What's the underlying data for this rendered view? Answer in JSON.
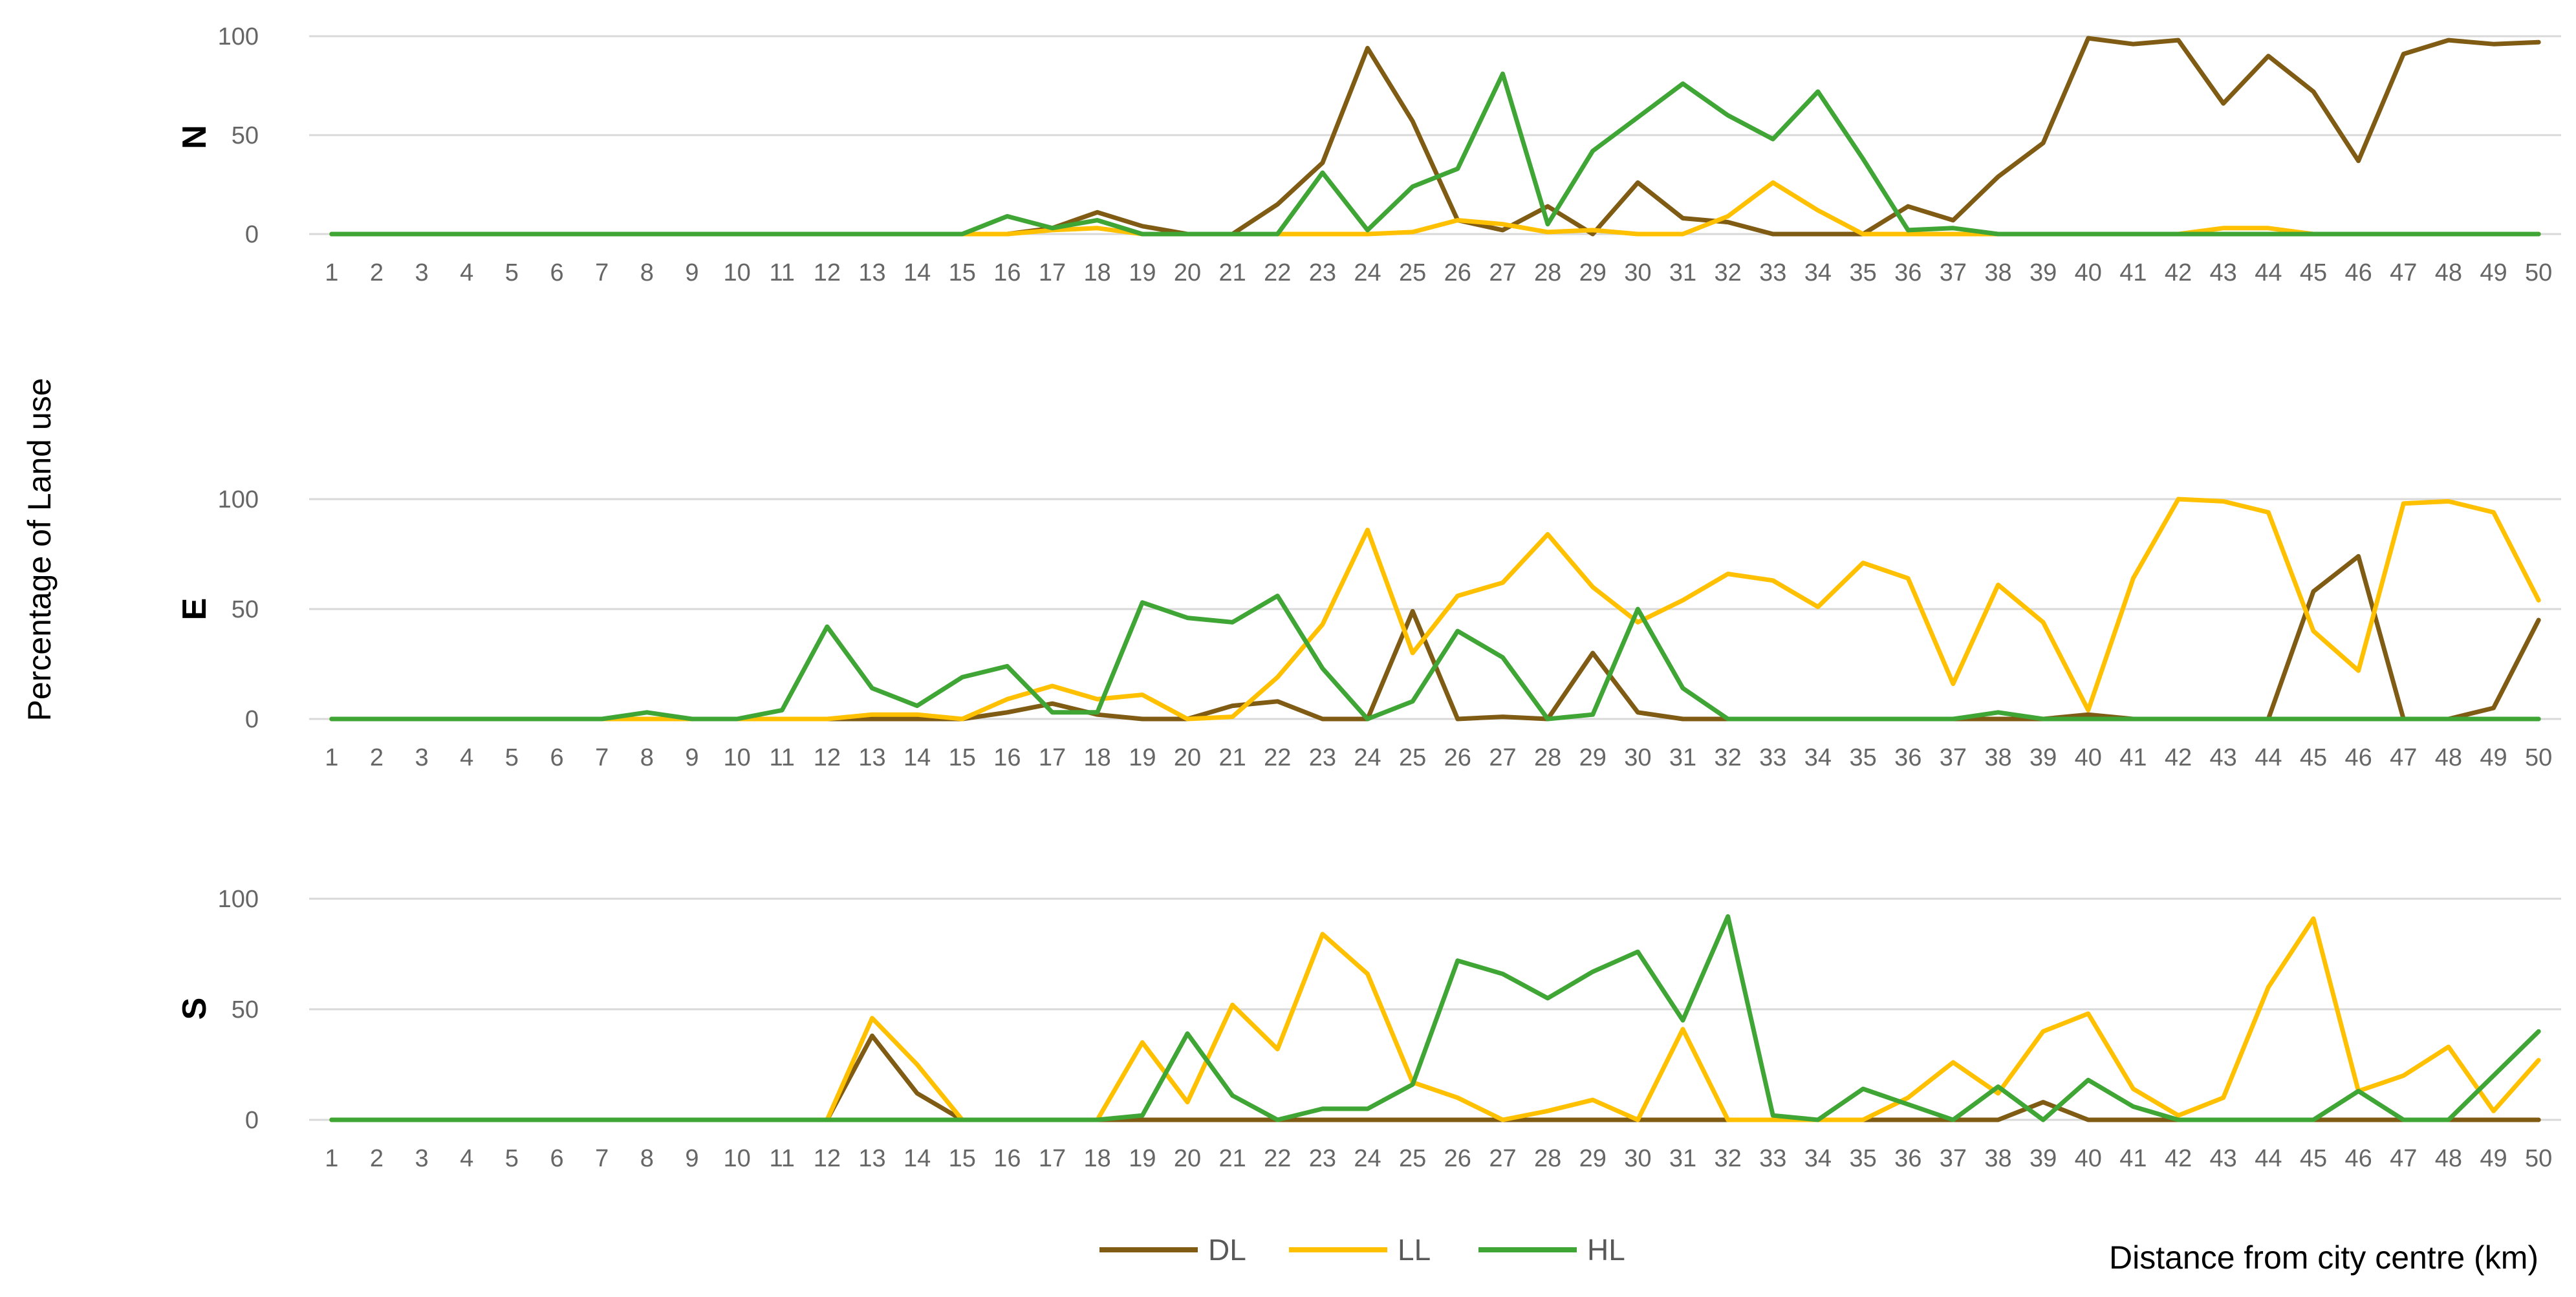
{
  "chart_data": {
    "type": "line",
    "ylabel": "Percentage of Land use",
    "xlabel": "Distance from city centre (km)",
    "x": [
      1,
      2,
      3,
      4,
      5,
      6,
      7,
      8,
      9,
      10,
      11,
      12,
      13,
      14,
      15,
      16,
      17,
      18,
      19,
      20,
      21,
      22,
      23,
      24,
      25,
      26,
      27,
      28,
      29,
      30,
      31,
      32,
      33,
      34,
      35,
      36,
      37,
      38,
      39,
      40,
      41,
      42,
      43,
      44,
      45,
      46,
      47,
      48,
      49,
      50
    ],
    "y_ticks": [
      0,
      50,
      100
    ],
    "ylim": [
      0,
      100
    ],
    "grid": true,
    "legend_position": "bottom",
    "legend": [
      {
        "name": "DL",
        "color": "#7f5b13"
      },
      {
        "name": "LL",
        "color": "#ffc000"
      },
      {
        "name": "HL",
        "color": "#3fa535"
      }
    ],
    "panels": [
      {
        "label": "N",
        "series": [
          {
            "name": "DL",
            "color": "#7f5b13",
            "values": [
              0,
              0,
              0,
              0,
              0,
              0,
              0,
              0,
              0,
              0,
              0,
              0,
              0,
              0,
              0,
              0,
              3,
              11,
              4,
              0,
              0,
              15,
              36,
              94,
              57,
              7,
              2,
              14,
              0,
              26,
              8,
              6,
              0,
              0,
              0,
              14,
              7,
              29,
              46,
              99,
              96,
              98,
              66,
              90,
              72,
              37,
              91,
              98,
              96,
              97
            ]
          },
          {
            "name": "LL",
            "color": "#ffc000",
            "values": [
              0,
              0,
              0,
              0,
              0,
              0,
              0,
              0,
              0,
              0,
              0,
              0,
              0,
              0,
              0,
              0,
              2,
              3,
              0,
              0,
              0,
              0,
              0,
              0,
              1,
              7,
              5,
              1,
              2,
              0,
              0,
              9,
              26,
              12,
              0,
              0,
              0,
              0,
              0,
              0,
              0,
              0,
              3,
              3,
              0,
              0,
              0,
              0,
              0,
              0
            ]
          },
          {
            "name": "HL",
            "color": "#3fa535",
            "values": [
              0,
              0,
              0,
              0,
              0,
              0,
              0,
              0,
              0,
              0,
              0,
              0,
              0,
              0,
              0,
              9,
              3,
              7,
              0,
              0,
              0,
              0,
              31,
              2,
              24,
              33,
              81,
              5,
              42,
              59,
              76,
              60,
              48,
              72,
              38,
              2,
              3,
              0,
              0,
              0,
              0,
              0,
              0,
              0,
              0,
              0,
              0,
              0,
              0,
              0
            ]
          }
        ]
      },
      {
        "label": "E",
        "series": [
          {
            "name": "DL",
            "color": "#7f5b13",
            "values": [
              0,
              0,
              0,
              0,
              0,
              0,
              0,
              0,
              0,
              0,
              0,
              0,
              0,
              0,
              0,
              3,
              7,
              2,
              0,
              0,
              6,
              8,
              0,
              0,
              49,
              0,
              1,
              0,
              30,
              3,
              0,
              0,
              0,
              0,
              0,
              0,
              0,
              0,
              0,
              2,
              0,
              0,
              0,
              0,
              58,
              74,
              0,
              0,
              5,
              45
            ]
          },
          {
            "name": "LL",
            "color": "#ffc000",
            "values": [
              0,
              0,
              0,
              0,
              0,
              0,
              0,
              0,
              0,
              0,
              0,
              0,
              2,
              2,
              0,
              9,
              15,
              9,
              11,
              0,
              1,
              19,
              43,
              86,
              30,
              56,
              62,
              84,
              60,
              44,
              54,
              66,
              63,
              51,
              71,
              64,
              16,
              61,
              44,
              4,
              64,
              100,
              99,
              94,
              40,
              22,
              98,
              99,
              94,
              54
            ]
          },
          {
            "name": "HL",
            "color": "#3fa535",
            "values": [
              0,
              0,
              0,
              0,
              0,
              0,
              0,
              3,
              0,
              0,
              4,
              42,
              14,
              6,
              19,
              24,
              3,
              3,
              53,
              46,
              44,
              56,
              23,
              0,
              8,
              40,
              28,
              0,
              2,
              50,
              14,
              0,
              0,
              0,
              0,
              0,
              0,
              3,
              0,
              0,
              0,
              0,
              0,
              0,
              0,
              0,
              0,
              0,
              0,
              0
            ]
          }
        ]
      },
      {
        "label": "S",
        "series": [
          {
            "name": "DL",
            "color": "#7f5b13",
            "values": [
              0,
              0,
              0,
              0,
              0,
              0,
              0,
              0,
              0,
              0,
              0,
              0,
              38,
              12,
              0,
              0,
              0,
              0,
              0,
              0,
              0,
              0,
              0,
              0,
              0,
              0,
              0,
              0,
              0,
              0,
              0,
              0,
              0,
              0,
              0,
              0,
              0,
              0,
              8,
              0,
              0,
              0,
              0,
              0,
              0,
              0,
              0,
              0,
              0,
              0
            ]
          },
          {
            "name": "LL",
            "color": "#ffc000",
            "values": [
              0,
              0,
              0,
              0,
              0,
              0,
              0,
              0,
              0,
              0,
              0,
              0,
              46,
              25,
              0,
              0,
              0,
              0,
              35,
              8,
              52,
              32,
              84,
              66,
              17,
              10,
              0,
              4,
              9,
              0,
              41,
              0,
              0,
              0,
              0,
              10,
              26,
              12,
              40,
              48,
              14,
              2,
              10,
              60,
              91,
              13,
              20,
              33,
              4,
              27
            ]
          },
          {
            "name": "HL",
            "color": "#3fa535",
            "values": [
              0,
              0,
              0,
              0,
              0,
              0,
              0,
              0,
              0,
              0,
              0,
              0,
              0,
              0,
              0,
              0,
              0,
              0,
              2,
              39,
              11,
              0,
              5,
              5,
              16,
              72,
              66,
              55,
              67,
              76,
              45,
              92,
              2,
              0,
              14,
              7,
              0,
              15,
              0,
              18,
              6,
              0,
              0,
              0,
              0,
              13,
              0,
              0,
              20,
              40
            ]
          }
        ]
      }
    ]
  }
}
